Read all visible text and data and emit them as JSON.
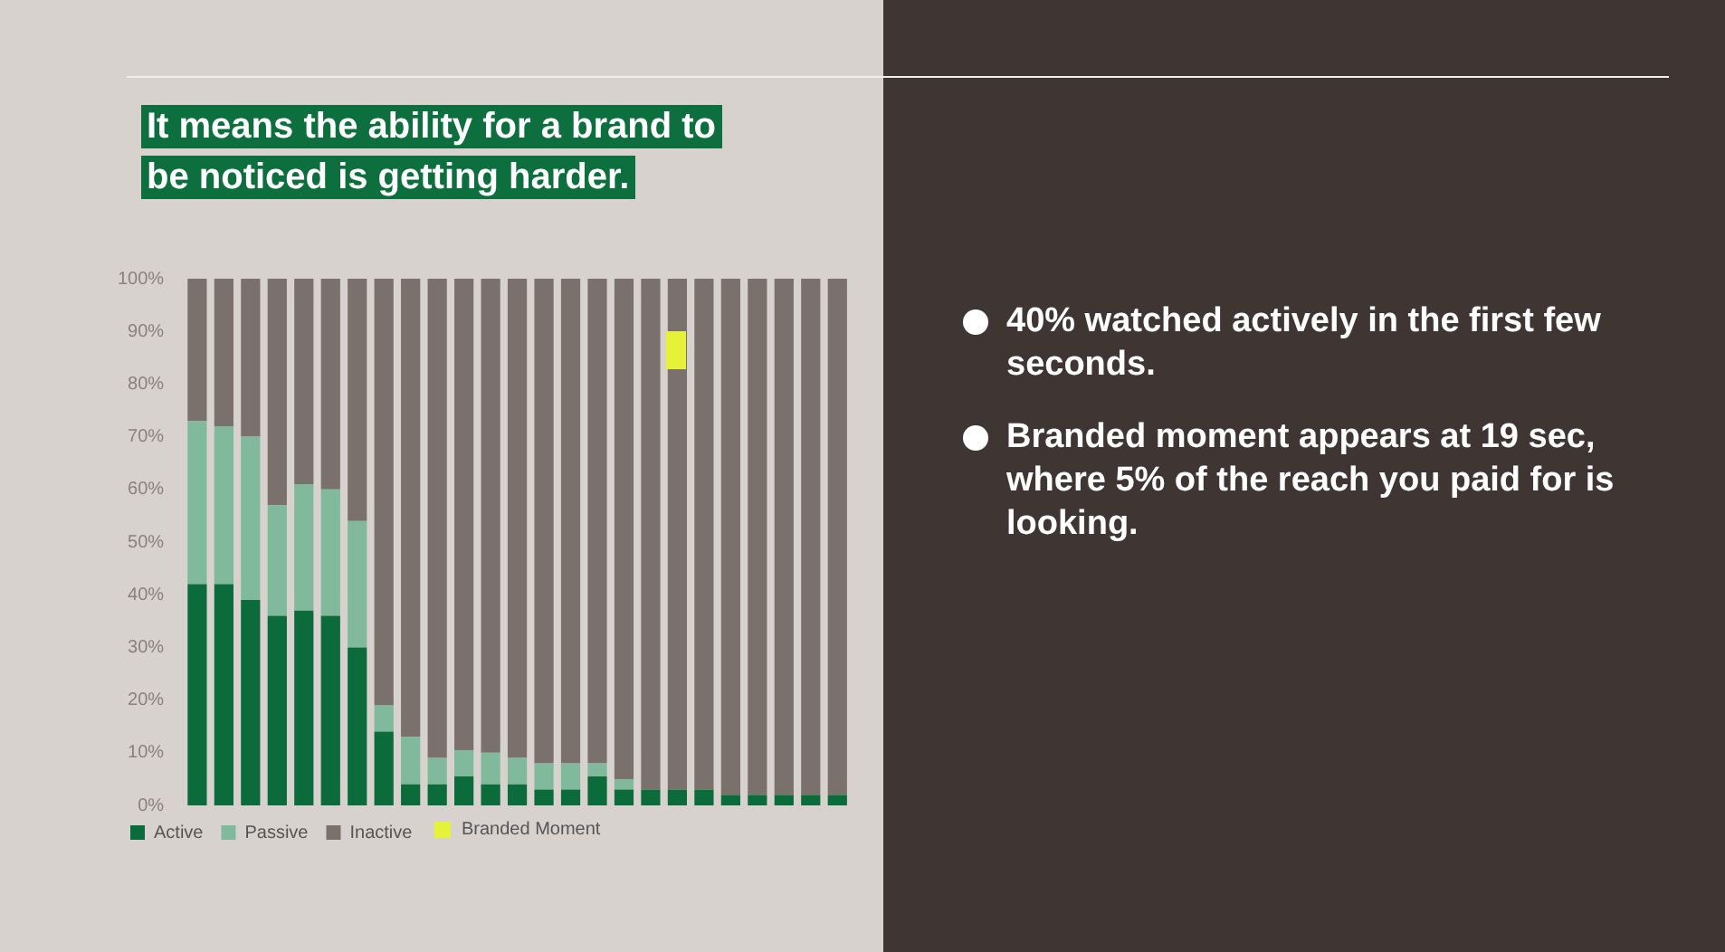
{
  "chart_data": {
    "type": "bar",
    "title": "It means the ability for a brand to be noticed is getting harder.",
    "categories": [
      null,
      null,
      null,
      null,
      null,
      null,
      null,
      null,
      null,
      null,
      null,
      null,
      null,
      null,
      null,
      null,
      null,
      null,
      null,
      null,
      null,
      null,
      null,
      null,
      null
    ],
    "stacked": true,
    "series": [
      {
        "name": "Active",
        "color": "#0b6b3a",
        "values": [
          42,
          42,
          39,
          36,
          37,
          36,
          30,
          14,
          4,
          4,
          5.5,
          4,
          4,
          3,
          3,
          5.5,
          3,
          3,
          3,
          3,
          2,
          2,
          2,
          2,
          2
        ]
      },
      {
        "name": "Passive",
        "color": "#80b99b",
        "values": [
          31,
          30,
          31,
          21,
          24,
          24,
          24,
          5,
          9,
          5,
          5,
          6,
          5,
          5,
          5,
          2.5,
          2,
          0,
          0,
          0,
          0,
          0,
          0,
          0,
          0
        ]
      },
      {
        "name": "Inactive",
        "color": "#7a716c",
        "values": [
          27,
          28,
          30,
          43,
          39,
          40,
          46,
          81,
          87,
          91,
          89.5,
          90,
          91,
          92,
          92,
          92,
          95,
          97,
          97,
          97,
          98,
          98,
          98,
          98,
          98
        ]
      }
    ],
    "ylim": [
      0,
      100
    ],
    "yticks": [
      {
        "value": 0,
        "label": "0%"
      },
      {
        "value": 10,
        "label": "10%"
      },
      {
        "value": 20,
        "label": "20%"
      },
      {
        "value": 30,
        "label": "30%"
      },
      {
        "value": 40,
        "label": "40%"
      },
      {
        "value": 50,
        "label": "50%"
      },
      {
        "value": 60,
        "label": "60%"
      },
      {
        "value": 70,
        "label": "70%"
      },
      {
        "value": 80,
        "label": "80%"
      },
      {
        "value": 90,
        "label": "90%"
      },
      {
        "value": 100,
        "label": "100%"
      }
    ],
    "grid": false,
    "tick_labels": "y",
    "legend": "bottom left",
    "annotations": [
      "Branded Moment",
      "40% watched actively in the first few seconds.",
      "Branded moment appears at 19 sec, where 5% of the reach you paid for is looking."
    ]
  }
}
